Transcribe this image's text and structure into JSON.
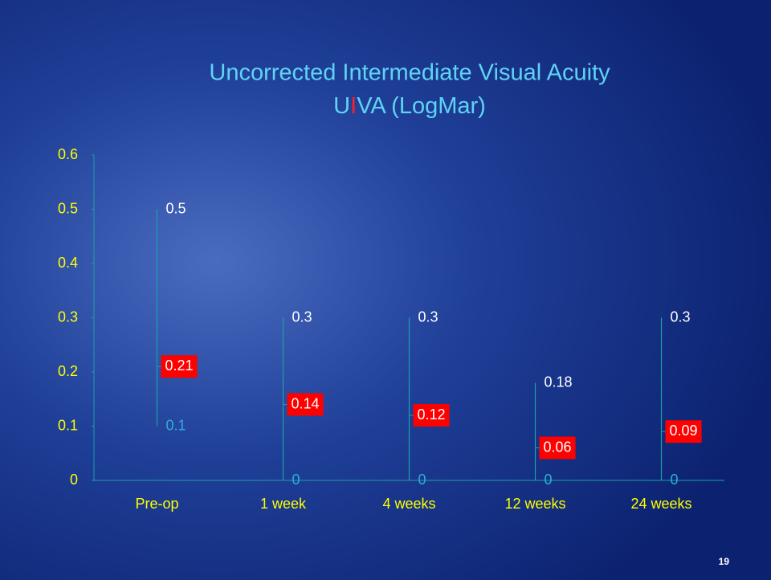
{
  "chart_data": {
    "type": "hilo",
    "title": "Uncorrected Intermediate Visual Acuity",
    "subtitle_parts": [
      {
        "text": "U",
        "color": "#5fd3f3"
      },
      {
        "text": "I",
        "color": "#ff2020"
      },
      {
        "text": "VA (LogMar)",
        "color": "#5fd3f3"
      }
    ],
    "categories": [
      "Pre-op",
      "1 week",
      "4 weeks",
      "12 weeks",
      "24 weeks"
    ],
    "series": [
      {
        "name": "High",
        "color": "#ffffff",
        "values": [
          0.5,
          0.3,
          0.3,
          0.18,
          0.3
        ]
      },
      {
        "name": "Low",
        "color": "#2ab0d8",
        "values": [
          0.1,
          0,
          0,
          0,
          0
        ]
      },
      {
        "name": "Mean",
        "color": "#ff0000",
        "values": [
          0.21,
          0.14,
          0.12,
          0.06,
          0.09
        ]
      }
    ],
    "line_color": "#1aa0a8",
    "ylim": [
      0,
      0.6
    ],
    "yticks": [
      0,
      0.1,
      0.2,
      0.3,
      0.4,
      0.5,
      0.6
    ],
    "tick_color": "#ffff00"
  },
  "slide_number": "19"
}
